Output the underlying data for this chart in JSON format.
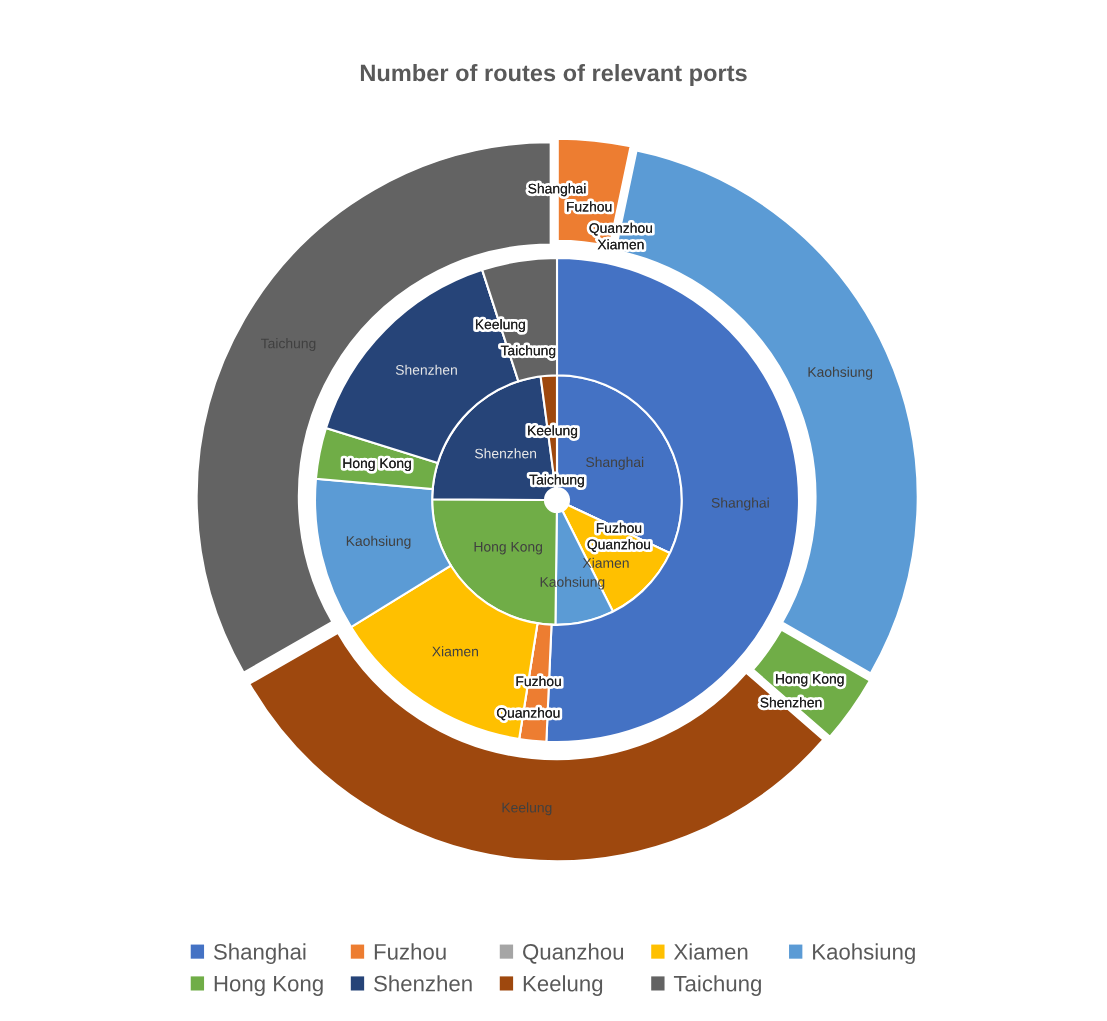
{
  "chart_data": {
    "type": "donut",
    "title": "Number of routes of relevant ports",
    "categories": [
      "Shanghai",
      "Fuzhou",
      "Quanzhou",
      "Xiamen",
      "Kaohsiung",
      "Hong Kong",
      "Shenzhen",
      "Keelung",
      "Taichung"
    ],
    "colors": [
      "#4472c4",
      "#ed7d31",
      "#a5a5a5",
      "#ffc000",
      "#5b9bd5",
      "#70ad47",
      "#264478",
      "#9e480e",
      "#636363"
    ],
    "series": [
      {
        "values": [
          32.0,
          0,
          0,
          10.6,
          7.6,
          24.9,
          22.8,
          2.1,
          0
        ]
      },
      {
        "values": [
          50.7,
          1.8,
          0,
          13.7,
          10.2,
          3.4,
          15.2,
          0,
          5.0
        ]
      },
      {
        "values": [
          0,
          3.3,
          0,
          0,
          30.0,
          3.1,
          0,
          30.3,
          33.3
        ]
      }
    ],
    "legend": "bottom"
  }
}
